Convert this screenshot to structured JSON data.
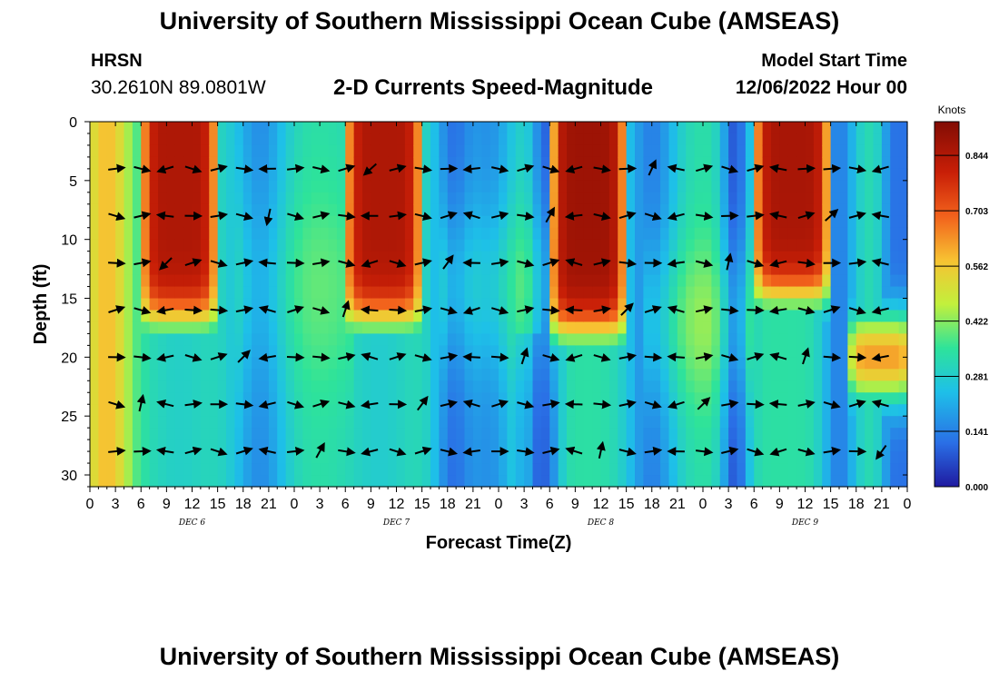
{
  "header": {
    "title": "University of Southern Mississippi Ocean Cube (AMSEAS)",
    "station": "HRSN",
    "coordinates": "30.2610N  89.0801W",
    "chart_title": "2-D Currents Speed-Magnitude",
    "model_start_label": "Model Start Time",
    "model_start_value": "12/06/2022 Hour 00"
  },
  "footer": {
    "title": "University of Southern Mississippi Ocean Cube (AMSEAS)"
  },
  "colors": {
    "low": "#1f1aa0",
    "mid": "#2ecc8a",
    "high": "#820c04",
    "arrow": "#000000"
  },
  "chart_data": {
    "type": "heatmap",
    "title": "2-D Currents Speed-Magnitude",
    "xlabel": "Forecast Time(Z)",
    "ylabel": "Depth (ft)",
    "x_tick_labels": [
      "0",
      "3",
      "6",
      "9",
      "12",
      "15",
      "18",
      "21",
      "0",
      "3",
      "6",
      "9",
      "12",
      "15",
      "18",
      "21",
      "0",
      "3",
      "6",
      "9",
      "12",
      "15",
      "18",
      "21",
      "0",
      "3",
      "6",
      "9",
      "12",
      "15",
      "18",
      "21",
      "0"
    ],
    "date_labels": [
      {
        "label": "DEC 6",
        "hour": 12
      },
      {
        "label": "DEC 7",
        "hour": 36
      },
      {
        "label": "DEC 8",
        "hour": 60
      },
      {
        "label": "DEC 9",
        "hour": 84
      }
    ],
    "xlim": [
      0,
      96
    ],
    "ylim": [
      0,
      31
    ],
    "y_ticks": [
      0,
      5,
      10,
      15,
      20,
      25,
      30
    ],
    "colorbar": {
      "label": "Knots",
      "range": [
        0,
        0.93
      ],
      "ticks": [
        "0.844",
        "0.703",
        "0.562",
        "0.422",
        "0.281",
        "0.141",
        "0.000"
      ]
    },
    "vector_depths_ft": [
      4,
      8,
      12,
      16,
      20,
      24,
      28
    ],
    "vector_hours_step": 3,
    "max_speed_zones": [
      {
        "hours": [
          7,
          14
        ],
        "depth_max_ft": 17,
        "knots": 0.85
      },
      {
        "hours": [
          31,
          38
        ],
        "depth_max_ft": 17,
        "knots": 0.85
      },
      {
        "hours": [
          55,
          62
        ],
        "depth_max_ft": 18,
        "knots": 0.88
      },
      {
        "hours": [
          79,
          86
        ],
        "depth_max_ft": 15,
        "knots": 0.86
      },
      {
        "hours": [
          90,
          96
        ],
        "depth_range_ft": [
          17,
          23
        ],
        "knots": 0.62
      }
    ]
  }
}
